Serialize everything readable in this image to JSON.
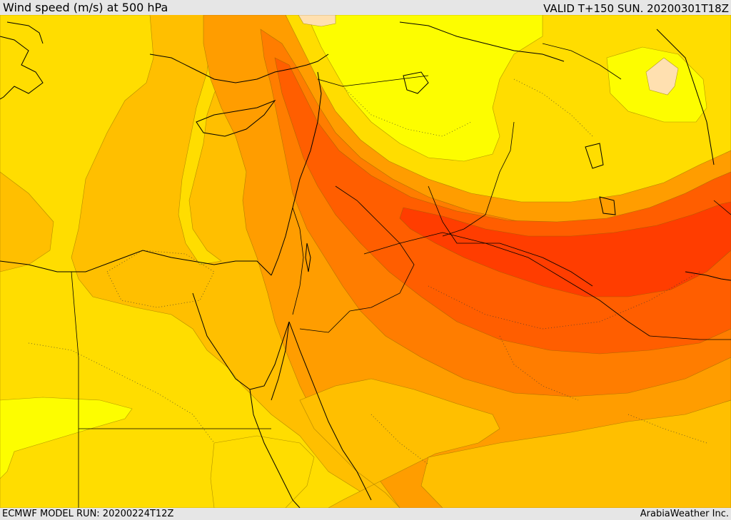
{
  "header": {
    "title": "Wind speed (m/s) at 500 hPa",
    "valid_time": "VALID T+150 SUN. 20200301T18Z"
  },
  "footer": {
    "model_run": "ECMWF MODEL RUN: 20200224T12Z",
    "credit": "ArabiaWeather Inc."
  },
  "colors": {
    "band_1": "#fdfd00",
    "band_2": "#ffdd00",
    "band_3": "#ffbf00",
    "band_4": "#ff9d00",
    "band_5": "#ff7d00",
    "band_6": "#ff5e00",
    "band_7": "#ff3d00",
    "band_calm": "#ffe0b0",
    "coastline": "#000000"
  }
}
